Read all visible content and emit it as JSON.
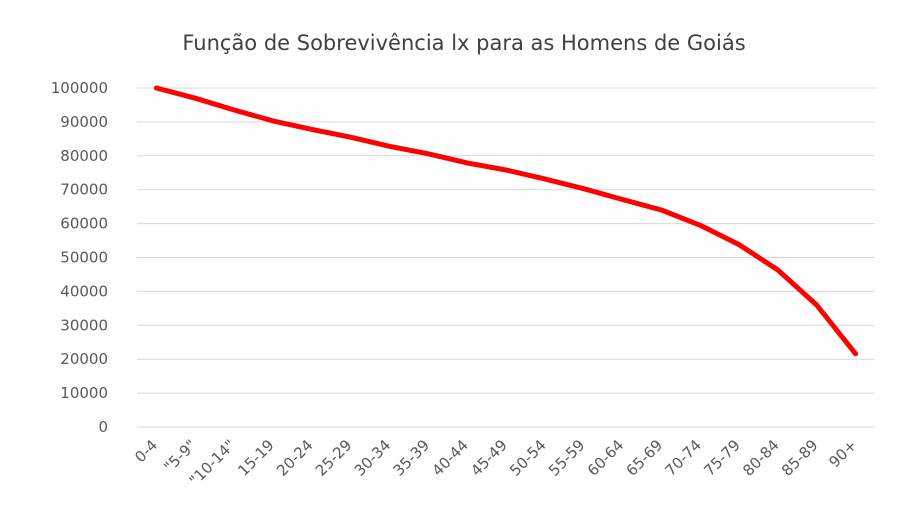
{
  "chart_data": {
    "type": "line",
    "title": "Função de Sobrevivência lx para as Homens de Goiás",
    "xlabel": "",
    "ylabel": "",
    "categories": [
      "0-4",
      "\"5-9\"",
      "\"10-14\"",
      "15-19",
      "20-24",
      "25-29",
      "30-34",
      "35-39",
      "40-44",
      "45-49",
      "50-54",
      "55-59",
      "60-64",
      "65-69",
      "70-74",
      "75-79",
      "80-84",
      "85-89",
      "90+"
    ],
    "series": [
      {
        "color": "#ff0000",
        "values": [
          100000,
          97000,
          93500,
          90300,
          87800,
          85500,
          82800,
          80600,
          77900,
          75800,
          73200,
          70300,
          67100,
          64000,
          59500,
          53800,
          46300,
          36000,
          21600
        ]
      }
    ],
    "ylim": [
      0,
      100000
    ],
    "yticks": [
      0,
      10000,
      20000,
      30000,
      40000,
      50000,
      60000,
      70000,
      80000,
      90000,
      100000
    ],
    "grid": true,
    "legend": "none"
  }
}
